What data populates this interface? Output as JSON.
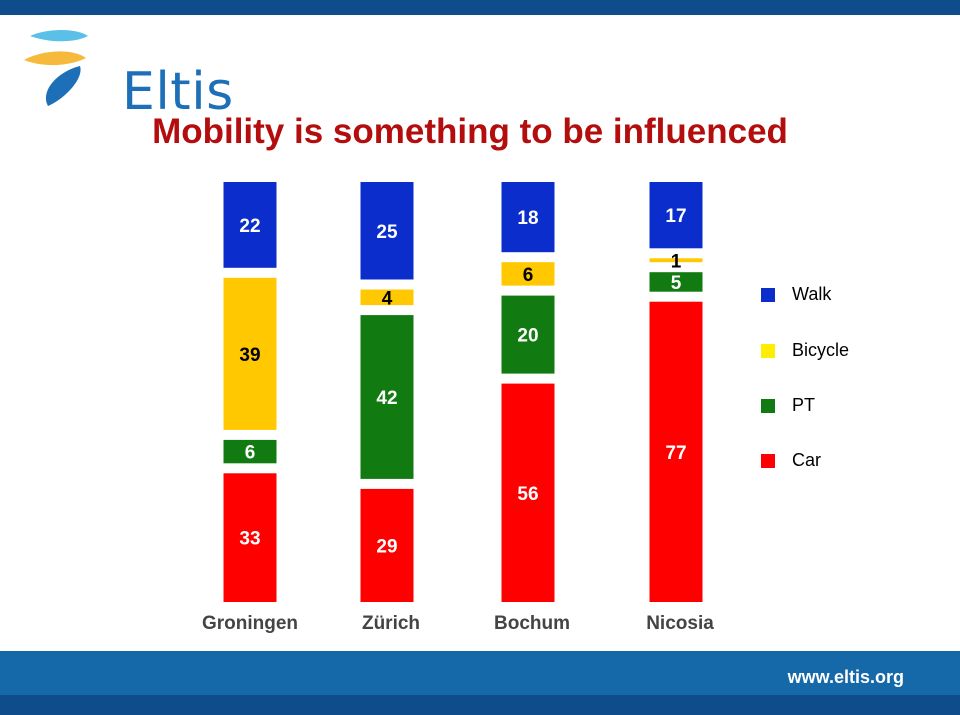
{
  "brand": {
    "name": "Eltis",
    "url": "www.eltis.org"
  },
  "slide": {
    "title": "Mobility is something to be influenced"
  },
  "legend": [
    {
      "label": "Walk",
      "color": "#0a2dcc"
    },
    {
      "label": "Bicycle",
      "color": "#ffee00"
    },
    {
      "label": "PT",
      "color": "#117a11"
    },
    {
      "label": "Car",
      "color": "#ff0000"
    }
  ],
  "chart_data": {
    "type": "bar",
    "stacked": true,
    "categories": [
      "Groningen",
      "Zürich",
      "Bochum",
      "Nicosia"
    ],
    "series": [
      {
        "name": "Walk",
        "values": [
          22,
          25,
          18,
          17
        ],
        "color": "#0a2dcc",
        "label_color": "#ffffff"
      },
      {
        "name": "Bicycle",
        "values": [
          39,
          4,
          6,
          1
        ],
        "color": "#ffc800",
        "label_color": "#000000"
      },
      {
        "name": "PT",
        "values": [
          6,
          42,
          20,
          5
        ],
        "color": "#117a11",
        "label_color": "#ffffff"
      },
      {
        "name": "Car",
        "values": [
          33,
          29,
          56,
          77
        ],
        "color": "#ff0000",
        "label_color": "#ffffff"
      }
    ],
    "legend_position": "right",
    "grid": false
  }
}
